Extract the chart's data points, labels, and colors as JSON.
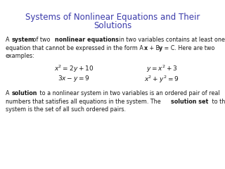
{
  "background_color": "#ffffff",
  "title_color": "#3a3aaa",
  "body_color": "#1a1a1a",
  "title_line1": "Systems of Nonlinear Equations and Their",
  "title_line2": "Solutions",
  "title_fontsize": 8.5,
  "body_fontsize": 5.8,
  "eq_fontsize": 6.5,
  "para1_line1_normal": [
    [
      "A ",
      false
    ],
    [
      "system",
      true
    ],
    [
      " of two ",
      false
    ],
    [
      "nonlinear equations",
      true
    ],
    [
      " in two variables contains at least one",
      false
    ]
  ],
  "para1_line2_normal": [
    [
      "equation that cannot be expressed in the form A",
      false
    ],
    [
      "x",
      true
    ],
    [
      " + B",
      false
    ],
    [
      "y",
      true
    ],
    [
      " = C. Here are two",
      false
    ]
  ],
  "para1_line3": "examples:",
  "eq_left_top": "$x^2 = 2y + 10$",
  "eq_left_bot": "$3x - y = 9$",
  "eq_right_top": "$y = x^2 + 3$",
  "eq_right_bot": "$x^2 + y^2 = 9$",
  "para2_line1": [
    [
      "A ",
      false
    ],
    [
      "solution",
      true
    ],
    [
      " to a nonlinear system in two variables is an ordered pair of real",
      false
    ]
  ],
  "para2_line2": [
    [
      "numbers that satisfies all equations in the system. The ",
      false
    ],
    [
      "solution set",
      true
    ],
    [
      " to the",
      false
    ]
  ],
  "para2_line3": [
    [
      "system is the set of all such ordered pairs.",
      false
    ]
  ]
}
